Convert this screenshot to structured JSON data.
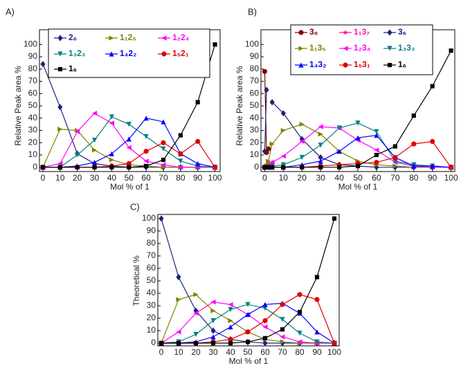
{
  "chart_data": [
    {
      "type": "line",
      "panel": "A)",
      "ylabel": "Relative Peak area %",
      "xlabel": "Mol % of 1",
      "x": [
        0,
        10,
        20,
        30,
        40,
        50,
        60,
        70,
        80,
        90,
        100
      ],
      "xlim": [
        -2,
        103
      ],
      "ylim": [
        -3.5,
        112
      ],
      "xticks": [
        0,
        10,
        20,
        30,
        40,
        50,
        60,
        70,
        80,
        90,
        100
      ],
      "yticks": [
        0,
        10,
        20,
        30,
        40,
        50,
        60,
        70,
        80,
        90,
        100
      ],
      "series": [
        {
          "name": "2₆",
          "color": "#1a237e",
          "marker": "diamond",
          "values": [
            84,
            49,
            11,
            3,
            1,
            0,
            0,
            0,
            0,
            0,
            0
          ]
        },
        {
          "name": "1₁2₅",
          "color": "#808000",
          "marker": "tri-right",
          "values": [
            0,
            31,
            30,
            14,
            6,
            2,
            1,
            0,
            0,
            0,
            0
          ]
        },
        {
          "name": "1₂2₄",
          "color": "#ff00ff",
          "marker": "tri-left",
          "values": [
            0,
            3,
            29,
            44,
            36,
            16,
            5,
            2,
            0,
            0,
            0
          ]
        },
        {
          "name": "1₃2₃",
          "color": "#008080",
          "marker": "tri-down",
          "values": [
            0,
            0,
            10,
            22,
            41,
            35,
            25,
            15,
            5,
            1,
            0
          ]
        },
        {
          "name": "1₄2₂",
          "color": "#0000ff",
          "marker": "tri-up",
          "values": [
            0,
            0,
            1,
            4,
            11,
            23,
            40,
            37,
            11,
            3,
            0
          ]
        },
        {
          "name": "1₅2₁",
          "color": "#e00000",
          "marker": "circle",
          "values": [
            0,
            0,
            0,
            0,
            1,
            3,
            13,
            20,
            11,
            21,
            0
          ]
        },
        {
          "name": "1₆",
          "color": "#000000",
          "marker": "square",
          "values": [
            0,
            0,
            0,
            0,
            0,
            0,
            1,
            6,
            26,
            53,
            100
          ]
        }
      ]
    },
    {
      "type": "line",
      "panel": "B)",
      "ylabel": "Relative Peak area %",
      "xlabel": "Mol % of 1",
      "x": [
        0,
        1,
        2,
        4,
        10,
        20,
        30,
        40,
        50,
        60,
        70,
        80,
        90,
        100
      ],
      "xlim": [
        -2,
        102
      ],
      "ylim": [
        -3.5,
        112
      ],
      "xticks": [
        0,
        10,
        20,
        30,
        40,
        50,
        60,
        70,
        80,
        90,
        100
      ],
      "yticks": [
        0,
        10,
        20,
        30,
        40,
        50,
        60,
        70,
        80,
        90,
        100
      ],
      "series": [
        {
          "name": "3₈",
          "color": "#800000",
          "marker": "circle",
          "values": [
            78,
            12,
            15,
            null,
            null,
            null,
            null,
            null,
            null,
            null,
            null,
            null,
            null,
            null
          ]
        },
        {
          "name": "1₁3₇",
          "color": "#ff1493",
          "marker": "star",
          "values": [
            0,
            2,
            3,
            4,
            null,
            null,
            null,
            null,
            null,
            null,
            null,
            null,
            null,
            null
          ]
        },
        {
          "name": "3₆",
          "color": "#1a237e",
          "marker": "diamond",
          "values": [
            13,
            63,
            null,
            53,
            44,
            23,
            8,
            2,
            1,
            0,
            0,
            0,
            0,
            0
          ]
        },
        {
          "name": "1₁3₅",
          "color": "#808000",
          "marker": "tri-right",
          "values": [
            0,
            1,
            5,
            19,
            30,
            35,
            27,
            13,
            5,
            2,
            1,
            0,
            0,
            0
          ]
        },
        {
          "name": "1₂3₄",
          "color": "#ff00ff",
          "marker": "tri-left",
          "values": [
            0,
            0,
            1,
            4,
            9,
            21,
            33,
            32,
            22,
            14,
            4,
            1,
            0,
            0
          ]
        },
        {
          "name": "1₃3₃",
          "color": "#008080",
          "marker": "tri-down",
          "values": [
            0,
            0,
            0,
            1,
            2,
            8,
            18,
            32,
            36,
            29,
            5,
            2,
            1,
            0
          ]
        },
        {
          "name": "1₄3₂",
          "color": "#0000ff",
          "marker": "tri-up",
          "values": [
            0,
            0,
            0,
            0,
            0,
            2,
            5,
            13,
            24,
            26,
            8,
            1,
            1,
            0
          ]
        },
        {
          "name": "1₅3₁",
          "color": "#e00000",
          "marker": "circle",
          "values": [
            0,
            0,
            0,
            0,
            0,
            0,
            1,
            2,
            3,
            4,
            8,
            19,
            21,
            0
          ]
        },
        {
          "name": "1₆",
          "color": "#000000",
          "marker": "square",
          "values": [
            0,
            0,
            0,
            0,
            0,
            0,
            0,
            0,
            1,
            10,
            17,
            42,
            66,
            95
          ]
        }
      ]
    },
    {
      "type": "line",
      "panel": "C)",
      "ylabel": "Theoretical %",
      "xlabel": "Mol % of 1",
      "x": [
        0,
        10,
        20,
        30,
        40,
        50,
        60,
        70,
        80,
        90,
        100
      ],
      "xlim": [
        -2,
        102.8
      ],
      "ylim": [
        -2.2,
        103.3
      ],
      "xticks": [
        0,
        10,
        20,
        30,
        40,
        50,
        60,
        70,
        80,
        90,
        100
      ],
      "yticks": [
        0,
        10,
        20,
        30,
        40,
        50,
        60,
        70,
        80,
        90,
        100
      ],
      "series": [
        {
          "color": "#1a237e",
          "marker": "diamond",
          "values": [
            100,
            53,
            26,
            10,
            3,
            1,
            0,
            0,
            0,
            0,
            0
          ]
        },
        {
          "color": "#808000",
          "marker": "tri-right",
          "values": [
            0,
            35,
            39,
            26,
            18,
            9,
            3,
            1,
            0,
            0,
            0
          ]
        },
        {
          "color": "#ff00ff",
          "marker": "tri-left",
          "values": [
            0,
            9,
            24,
            33,
            31,
            23,
            13,
            5,
            1,
            0,
            0
          ]
        },
        {
          "color": "#008080",
          "marker": "tri-down",
          "values": [
            0,
            1,
            7,
            18,
            27,
            31,
            28,
            19,
            8,
            1,
            0
          ]
        },
        {
          "color": "#0000ff",
          "marker": "tri-up",
          "values": [
            0,
            0,
            1,
            5,
            13,
            23,
            31,
            32,
            24,
            9,
            0
          ]
        },
        {
          "color": "#e00000",
          "marker": "circle",
          "values": [
            0,
            0,
            0,
            1,
            3,
            9,
            18,
            31,
            39,
            35,
            0
          ]
        },
        {
          "color": "#000000",
          "marker": "square",
          "values": [
            0,
            0,
            0,
            0,
            0,
            1,
            4,
            11,
            25,
            53,
            100
          ]
        }
      ]
    }
  ]
}
